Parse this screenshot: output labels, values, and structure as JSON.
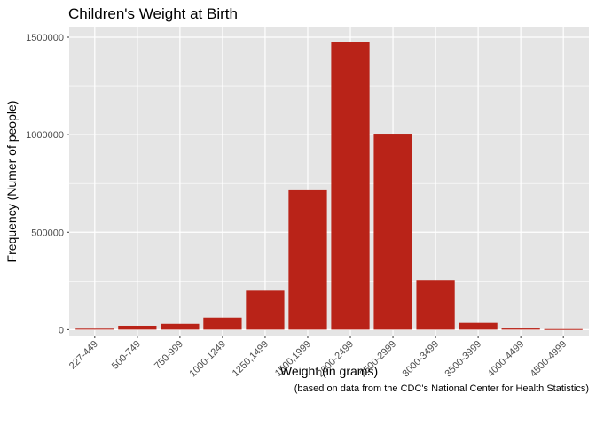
{
  "colors": {
    "panel_background": "#e5e5e5",
    "grid_major": "#ffffff",
    "bar_fill": "#b92318",
    "text": "#000000",
    "tick_text": "#4d4d4d"
  },
  "chart_data": {
    "type": "bar",
    "title": "Children's Weight at Birth",
    "xlabel": "Weight (in grams)",
    "ylabel": "Frequency (Numer of people)",
    "caption": "(based on data from the CDC's National Center for Health Statistics)",
    "categories": [
      "227-449",
      "500-749",
      "750-999",
      "1000-1249",
      "1250,1499",
      "1500,1999",
      "2000-2499",
      "2500-2999",
      "3000-3499",
      "3500-3999",
      "4000-4499",
      "4500-4999"
    ],
    "values": [
      5000,
      20000,
      30000,
      62000,
      200000,
      715000,
      1475000,
      1005000,
      255000,
      35000,
      6000,
      3000
    ],
    "ylim": [
      -30000,
      1550000
    ],
    "yticks": [
      0,
      500000,
      1000000,
      1500000
    ],
    "ytick_labels": [
      "0",
      "500000",
      "1000000",
      "1500000"
    ],
    "grid": true,
    "legend": "none"
  }
}
